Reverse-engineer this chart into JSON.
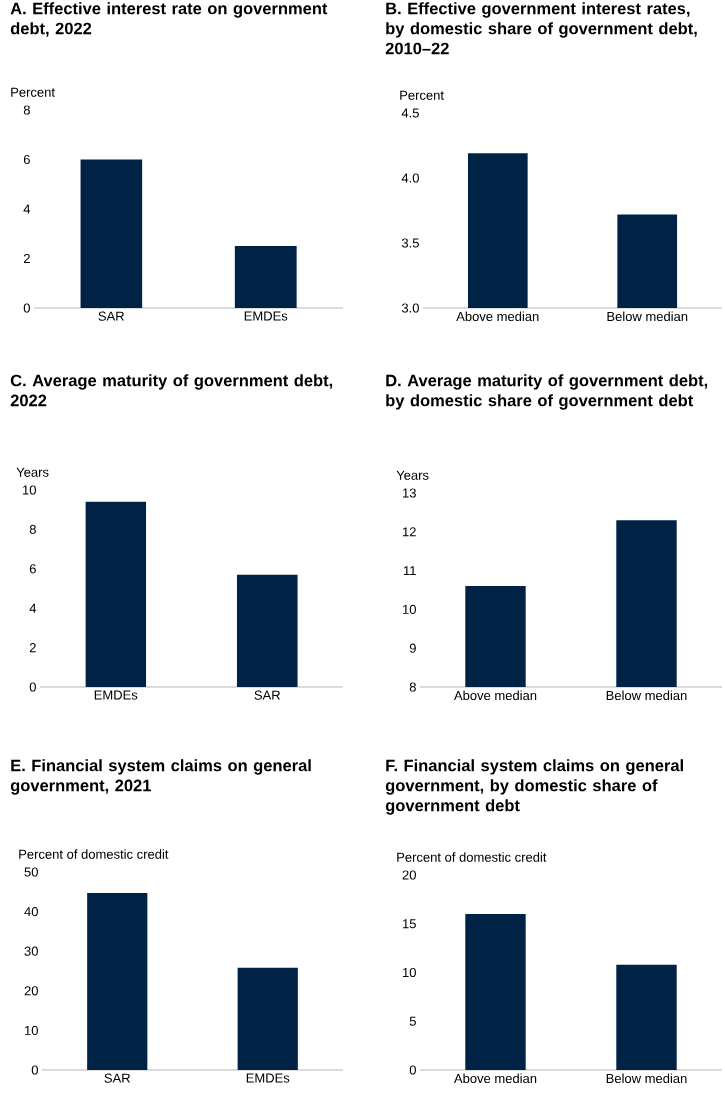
{
  "chart_data": [
    {
      "type": "bar",
      "title": "A. Effective interest rate on government debt, 2022",
      "ylabel": "Percent",
      "categories": [
        "SAR",
        "EMDEs"
      ],
      "values": [
        6.0,
        2.5
      ],
      "color": "#002345",
      "ylim": [
        0,
        8
      ],
      "yticks": [
        0,
        2,
        4,
        6,
        8
      ]
    },
    {
      "type": "bar",
      "title": "B. Effective government interest rates, by domestic share of government debt, 2010–22",
      "ylabel": "Percent",
      "categories": [
        "Above median",
        "Below median"
      ],
      "values": [
        4.19,
        3.72
      ],
      "color": "#002345",
      "ylim": [
        3,
        4.5
      ],
      "yticks": [
        {
          "value": 3,
          "label": "3.0"
        },
        3.5,
        {
          "value": 4,
          "label": "4.0"
        },
        4.5
      ]
    },
    {
      "type": "bar",
      "title": "C. Average maturity of government debt, 2022",
      "ylabel": "Years",
      "categories": [
        "EMDEs",
        "SAR"
      ],
      "values": [
        9.4,
        5.7
      ],
      "color": "#002345",
      "ylim": [
        0,
        10
      ],
      "yticks": [
        0,
        2,
        4,
        6,
        8,
        10
      ]
    },
    {
      "type": "bar",
      "title": "D. Average maturity of government debt, by domestic share of government debt",
      "ylabel": "Years",
      "categories": [
        "Above median",
        "Below median"
      ],
      "values": [
        10.6,
        12.3
      ],
      "color": "#002345",
      "ylim": [
        8,
        13
      ],
      "yticks": [
        8,
        9,
        10,
        11,
        12,
        13
      ]
    },
    {
      "type": "bar",
      "title": "E. Financial system claims on general government, 2021",
      "ylabel": "Percent of domestic credit",
      "categories": [
        "SAR",
        "EMDEs"
      ],
      "values": [
        44.7,
        25.8
      ],
      "color": "#002345",
      "ylim": [
        0,
        50
      ],
      "yticks": [
        0,
        10,
        20,
        30,
        40,
        50
      ]
    },
    {
      "type": "bar",
      "title": "F. Financial system claims on general government, by domestic share of government debt",
      "ylabel": "Percent of domestic credit",
      "categories": [
        "Above median",
        "Below median"
      ],
      "values": [
        16.0,
        10.8
      ],
      "color": "#002345",
      "ylim": [
        0,
        20
      ],
      "yticks": [
        0,
        5,
        10,
        15,
        20
      ]
    }
  ]
}
